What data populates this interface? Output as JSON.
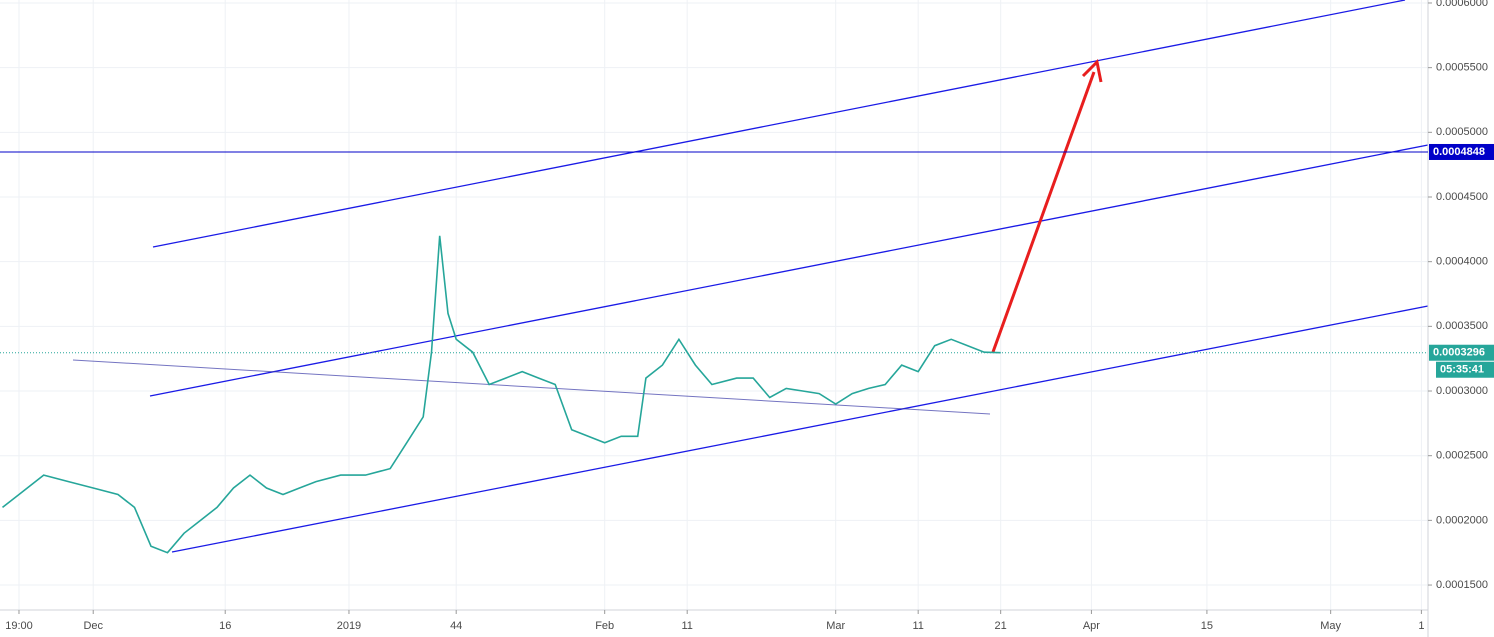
{
  "chart_data": {
    "type": "line",
    "color": "#26a69a",
    "grid": true,
    "x": [
      -11,
      -9,
      -6,
      -3,
      0,
      3,
      5,
      7,
      9,
      11,
      13,
      15,
      17,
      19,
      21,
      23,
      25,
      27,
      30,
      33,
      36,
      38,
      40,
      41,
      42,
      43,
      44,
      46,
      48,
      50,
      52,
      54,
      56,
      58,
      60,
      62,
      64,
      66,
      67,
      69,
      71,
      73,
      75,
      78,
      80,
      82,
      84,
      86,
      88,
      90,
      92,
      94,
      96,
      98,
      100,
      102,
      104,
      106,
      108,
      110
    ],
    "values": [
      0.00021,
      0.00022,
      0.000235,
      0.00023,
      0.000225,
      0.00022,
      0.00021,
      0.00018,
      0.000175,
      0.00019,
      0.0002,
      0.00021,
      0.000225,
      0.000235,
      0.000225,
      0.00022,
      0.000225,
      0.00023,
      0.000235,
      0.000235,
      0.00024,
      0.00026,
      0.00028,
      0.00033,
      0.00042,
      0.00036,
      0.00034,
      0.00033,
      0.000305,
      0.00031,
      0.000315,
      0.00031,
      0.000305,
      0.00027,
      0.000265,
      0.00026,
      0.000265,
      0.000265,
      0.00031,
      0.00032,
      0.00034,
      0.00032,
      0.000305,
      0.00031,
      0.00031,
      0.000295,
      0.000302,
      0.0003,
      0.000298,
      0.00029,
      0.000298,
      0.000302,
      0.000305,
      0.00032,
      0.000315,
      0.000335,
      0.00034,
      0.000335,
      0.00033,
      0.0003296
    ],
    "xlim": [
      -11.3,
      161.8
    ],
    "xticks": [
      {
        "value": -9,
        "label": "19:00"
      },
      {
        "value": 0,
        "label": "Dec"
      },
      16,
      {
        "value": 31,
        "label": "2019"
      },
      44,
      {
        "value": 62,
        "label": "Feb"
      },
      {
        "value": 72,
        "label": "11"
      },
      {
        "value": 90,
        "label": "Mar"
      },
      {
        "value": 100,
        "label": "11"
      },
      {
        "value": 110,
        "label": "21"
      },
      {
        "value": 121,
        "label": "Apr"
      },
      {
        "value": 135,
        "label": "15"
      },
      {
        "value": 150,
        "label": "May"
      },
      {
        "value": 161,
        "label": "1"
      }
    ],
    "ylim": [
      0.0001307,
      0.0006023
    ],
    "yticks": [
      {
        "value": 0.00015,
        "label": "0.0001500"
      },
      {
        "value": 0.0002,
        "label": "0.0002000"
      },
      {
        "value": 0.00025,
        "label": "0.0002500"
      },
      {
        "value": 0.0003,
        "label": "0.0003000"
      },
      {
        "value": 0.00035,
        "label": "0.0003500"
      },
      {
        "value": 0.0004,
        "label": "0.0004000"
      },
      {
        "value": 0.00045,
        "label": "0.0004500"
      },
      {
        "value": 0.0005,
        "label": "0.0005000"
      },
      {
        "value": 0.00055,
        "label": "0.0005500"
      },
      {
        "value": 0.0006,
        "label": "0.0006000"
      }
    ],
    "level_line": {
      "value": 0.0004848,
      "label": "0.0004848",
      "color": "#0000c8"
    },
    "last_price": {
      "value": 0.0003296,
      "label": "0.0003296",
      "color": "#26a69a"
    },
    "countdown": "05:35:41"
  }
}
